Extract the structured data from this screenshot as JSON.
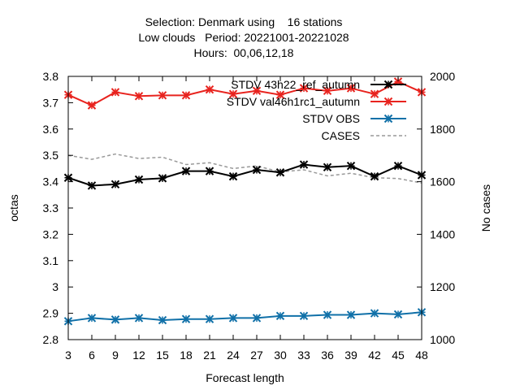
{
  "chart_data": {
    "type": "line",
    "title_lines": [
      "Selection: Denmark using    16 stations",
      "Low clouds   Period: 20221001-20221028",
      "Hours:  00,06,12,18"
    ],
    "xlabel": "Forecast length",
    "ylabel": "octas",
    "y2label": "No cases",
    "x": [
      3,
      6,
      9,
      12,
      15,
      18,
      21,
      24,
      27,
      30,
      33,
      36,
      39,
      42,
      45,
      48
    ],
    "xlim": [
      3,
      48
    ],
    "ylim": [
      2.8,
      3.8
    ],
    "y2lim": [
      1000,
      2000
    ],
    "yticks": [
      "2.8",
      "2.9",
      "3",
      "3.1",
      "3.2",
      "3.3",
      "3.4",
      "3.5",
      "3.6",
      "3.7",
      "3.8"
    ],
    "y2ticks": [
      "1000",
      "1200",
      "1400",
      "1600",
      "1800",
      "2000"
    ],
    "xticks": [
      "3",
      "6",
      "9",
      "12",
      "15",
      "18",
      "21",
      "24",
      "27",
      "30",
      "33",
      "36",
      "39",
      "42",
      "45",
      "48"
    ],
    "grid": false,
    "legend_position": "top-right",
    "series": [
      {
        "name": "STDV 43h22_ref_autumn",
        "axis": "y",
        "color": "#000000",
        "style": "solid",
        "marker": "x",
        "values": [
          3.415,
          3.385,
          3.39,
          3.408,
          3.413,
          3.44,
          3.44,
          3.42,
          3.445,
          3.435,
          3.465,
          3.455,
          3.46,
          3.42,
          3.46,
          3.425
        ]
      },
      {
        "name": "STDV val46h1rc1_autumn",
        "axis": "y",
        "color": "#e8231e",
        "style": "solid",
        "marker": "x",
        "values": [
          3.73,
          3.69,
          3.74,
          3.725,
          3.728,
          3.728,
          3.75,
          3.733,
          3.745,
          3.73,
          3.755,
          3.745,
          3.755,
          3.733,
          3.78,
          3.74
        ]
      },
      {
        "name": "STDV OBS",
        "axis": "y",
        "color": "#1070a8",
        "style": "solid",
        "marker": "x",
        "values": [
          2.87,
          2.882,
          2.876,
          2.882,
          2.874,
          2.878,
          2.878,
          2.882,
          2.882,
          2.89,
          2.89,
          2.894,
          2.894,
          2.9,
          2.896,
          2.904
        ]
      },
      {
        "name": "CASES",
        "axis": "y2",
        "color": "#999999",
        "style": "dashed",
        "marker": "none",
        "values": [
          1700,
          1685,
          1705,
          1688,
          1693,
          1665,
          1672,
          1650,
          1660,
          1637,
          1645,
          1622,
          1632,
          1615,
          1612,
          1595
        ]
      }
    ]
  }
}
